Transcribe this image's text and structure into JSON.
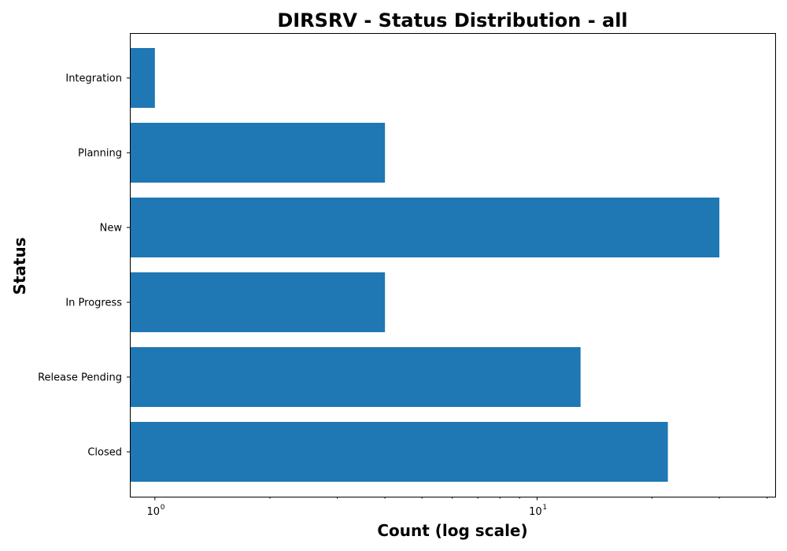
{
  "chart_data": {
    "type": "bar",
    "orientation": "horizontal",
    "title": "DIRSRV - Status Distribution - all",
    "xlabel": "Count (log scale)",
    "ylabel": "Status",
    "x_scale": "log",
    "xlim": [
      0.86,
      42
    ],
    "categories": [
      "Closed",
      "Release Pending",
      "In Progress",
      "New",
      "Planning",
      "Integration"
    ],
    "values": [
      22,
      13,
      4,
      30,
      4,
      1
    ],
    "x_major_ticks": [
      {
        "value": 1,
        "base": "10",
        "exp": "0"
      },
      {
        "value": 10,
        "base": "10",
        "exp": "1"
      }
    ],
    "x_minor_ticks": [
      2,
      3,
      4,
      5,
      6,
      7,
      8,
      9,
      20,
      30,
      40
    ],
    "grid": false,
    "legend": "none",
    "colors": {
      "bar": "#1f77b4",
      "axes": "#000000",
      "background": "#ffffff"
    }
  }
}
